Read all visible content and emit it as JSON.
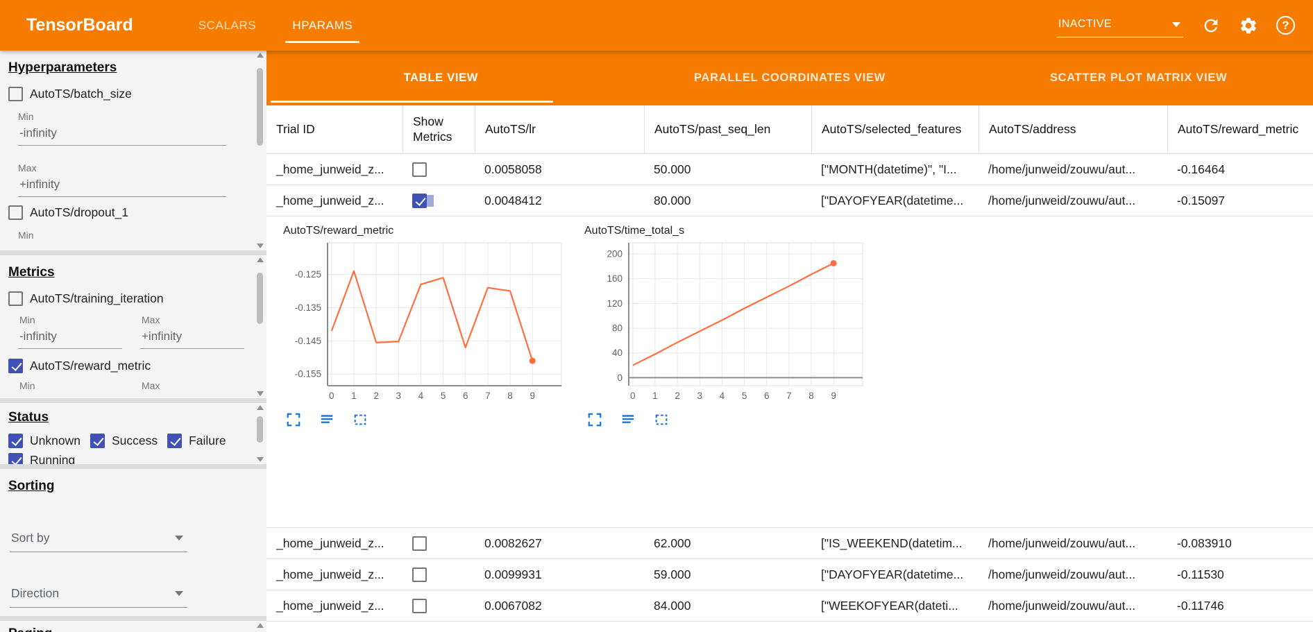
{
  "topbar": {
    "title": "TensorBoard",
    "tabs": [
      {
        "label": "SCALARS"
      },
      {
        "label": "HPARAMS"
      }
    ],
    "active_tab": "HPARAMS",
    "run_status": "INACTIVE"
  },
  "icons": {
    "help_glyph": "?",
    "topbar_icons": [
      "caret-down-icon",
      "refresh-icon",
      "settings-gear-icon",
      "help-icon"
    ],
    "chart_controls": [
      "maximize-icon",
      "data-table-icon",
      "zoom-selection-icon"
    ]
  },
  "sidebar": {
    "hyperparameters": {
      "heading": "Hyperparameters",
      "items": [
        {
          "label": "AutoTS/batch_size",
          "checked": false
        },
        {
          "label": "AutoTS/dropout_1",
          "checked": false
        }
      ],
      "min_label": "Min",
      "max_label": "Max",
      "min_value": "-infinity",
      "max_value": "+infinity"
    },
    "metrics": {
      "heading": "Metrics",
      "items": [
        {
          "label": "AutoTS/training_iteration",
          "checked": false
        },
        {
          "label": "AutoTS/reward_metric",
          "checked": true
        }
      ],
      "min_label": "Min",
      "max_label": "Max",
      "min_value": "-infinity",
      "max_value": "+infinity"
    },
    "status": {
      "heading": "Status",
      "items": [
        {
          "label": "Unknown",
          "checked": true
        },
        {
          "label": "Success",
          "checked": true
        },
        {
          "label": "Failure",
          "checked": true
        },
        {
          "label": "Running",
          "checked": true
        }
      ]
    },
    "sorting": {
      "heading": "Sorting",
      "sort_by_label": "Sort by",
      "direction_label": "Direction"
    },
    "paging": {
      "heading": "Paging"
    }
  },
  "views": {
    "tabs": [
      "TABLE VIEW",
      "PARALLEL COORDINATES VIEW",
      "SCATTER PLOT MATRIX VIEW"
    ],
    "active": "TABLE VIEW"
  },
  "table": {
    "columns": [
      "Trial ID",
      "Show Metrics",
      "AutoTS/lr",
      "AutoTS/past_seq_len",
      "AutoTS/selected_features",
      "AutoTS/address",
      "AutoTS/reward_metric"
    ],
    "rows": [
      {
        "trial_id": "_home_junweid_z...",
        "show_metrics": false,
        "lr": "0.0058058",
        "past_seq_len": "50.000",
        "selected_features": "[\"MONTH(datetime)\", \"I...",
        "address": "/home/junweid/zouwu/aut...",
        "reward_metric": "-0.16464"
      },
      {
        "trial_id": "_home_junweid_z...",
        "show_metrics": true,
        "lr": "0.0048412",
        "past_seq_len": "80.000",
        "selected_features": "[\"DAYOFYEAR(datetime...",
        "address": "/home/junweid/zouwu/aut...",
        "reward_metric": "-0.15097"
      },
      {
        "trial_id": "_home_junweid_z...",
        "show_metrics": false,
        "lr": "0.0082627",
        "past_seq_len": "62.000",
        "selected_features": "[\"IS_WEEKEND(datetim...",
        "address": "/home/junweid/zouwu/aut...",
        "reward_metric": "-0.083910"
      },
      {
        "trial_id": "_home_junweid_z...",
        "show_metrics": false,
        "lr": "0.0099931",
        "past_seq_len": "59.000",
        "selected_features": "[\"DAYOFYEAR(datetime...",
        "address": "/home/junweid/zouwu/aut...",
        "reward_metric": "-0.11530"
      },
      {
        "trial_id": "_home_junweid_z...",
        "show_metrics": false,
        "lr": "0.0067082",
        "past_seq_len": "84.000",
        "selected_features": "[\"WEEKOFYEAR(dateti...",
        "address": "/home/junweid/zouwu/aut...",
        "reward_metric": "-0.11746"
      }
    ]
  },
  "chart_data": [
    {
      "type": "line",
      "title": "AutoTS/reward_metric",
      "x": [
        0,
        1,
        2,
        3,
        4,
        5,
        6,
        7,
        8,
        9
      ],
      "series": [
        {
          "values": [
            -0.142,
            -0.124,
            -0.1455,
            -0.1452,
            -0.128,
            -0.126,
            -0.147,
            -0.129,
            -0.13,
            -0.151
          ]
        }
      ],
      "xticks": [
        0,
        1,
        2,
        3,
        4,
        5,
        6,
        7,
        8,
        9
      ],
      "yticks": [
        -0.125,
        -0.135,
        -0.145,
        -0.155
      ],
      "xlim": [
        -0.18,
        10.3
      ],
      "ylim": [
        -0.1585,
        -0.1155
      ],
      "grid": true,
      "legend": "none",
      "line_color": "#ff6e40",
      "end_dot": true
    },
    {
      "type": "line",
      "title": "AutoTS/time_total_s",
      "x": [
        0,
        1,
        2,
        3,
        4,
        5,
        6,
        7,
        8,
        9
      ],
      "series": [
        {
          "values": [
            20,
            38,
            57,
            75,
            93,
            112,
            130,
            148,
            167,
            185
          ]
        }
      ],
      "xticks": [
        0,
        1,
        2,
        3,
        4,
        5,
        6,
        7,
        8,
        9
      ],
      "yticks": [
        0,
        40,
        80,
        120,
        160,
        200
      ],
      "xlim": [
        -0.18,
        10.3
      ],
      "ylim": [
        -13,
        218
      ],
      "grid": true,
      "legend": "none",
      "line_color": "#ff6e40",
      "end_dot": true
    }
  ],
  "colors": {
    "brand_orange": "#f57c00",
    "checkbox_blue": "#3f51b5",
    "chart_line_orange": "#ff6e40",
    "control_icon_blue": "#1976d2"
  }
}
